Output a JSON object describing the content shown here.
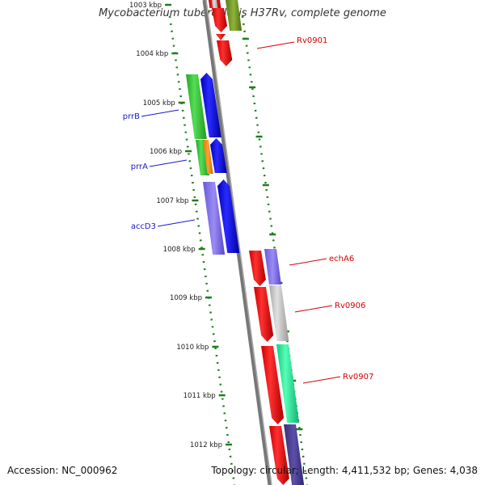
{
  "title": "Mycobacterium tuberculosis H37Rv, complete genome",
  "footer": {
    "accession": "Accession: NC_000962",
    "summary": "Topology: circular; Length: 4,411,532 bp; Genes: 4,038"
  },
  "ticks": [
    "1003 kbp",
    "1004 kbp",
    "1005 kbp",
    "1006 kbp",
    "1007 kbp",
    "1008 kbp",
    "1009 kbp",
    "1010 kbp",
    "1011 kbp",
    "1012 kbp"
  ],
  "labels": [
    {
      "id": "rv0901",
      "text": "Rv0901",
      "color": "#d40000"
    },
    {
      "id": "prrb",
      "text": "prrB",
      "color": "#1a1acc"
    },
    {
      "id": "prra",
      "text": "prrA",
      "color": "#1a1acc"
    },
    {
      "id": "accd3",
      "text": "accD3",
      "color": "#1a1acc"
    },
    {
      "id": "echa6",
      "text": "echA6",
      "color": "#d40000"
    },
    {
      "id": "rv0906",
      "text": "Rv0906",
      "color": "#d40000"
    },
    {
      "id": "rv0907",
      "text": "Rv0907",
      "color": "#d40000"
    }
  ],
  "colors": {
    "red": "#ee0000",
    "blue": "#0000ee",
    "green": "#33cc33",
    "orange": "#ff8c00",
    "purple": "#7b68ee",
    "grey": "#c0c0c0",
    "teal": "#22ee99",
    "darkpurple": "#483d8b",
    "olive": "#6b8e23",
    "backbone": "#888888",
    "tickgreen": "#1e7e1e"
  }
}
